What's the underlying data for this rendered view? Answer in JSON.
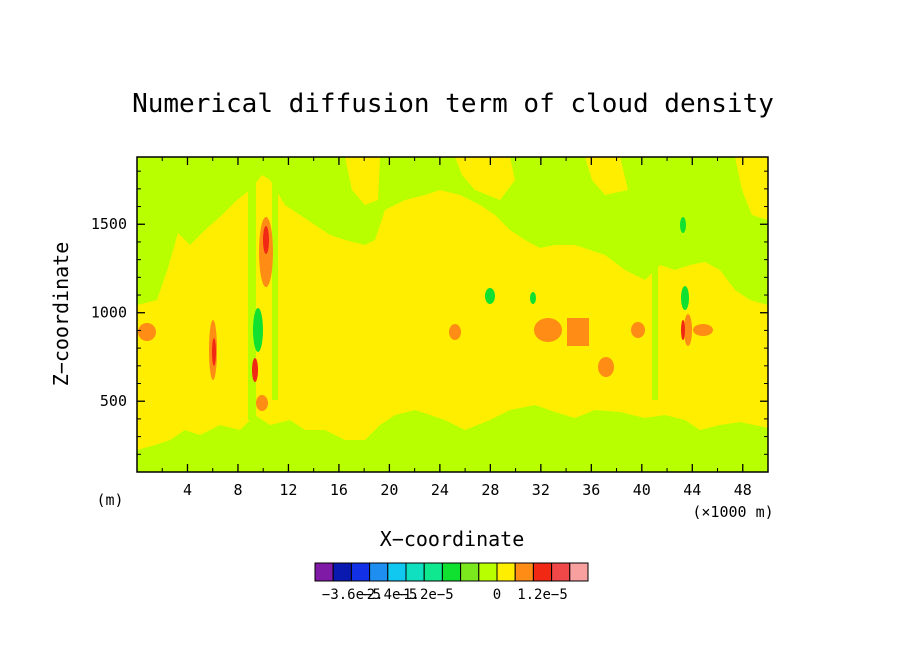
{
  "chart_data": {
    "type": "heatmap",
    "title": "Numerical diffusion term of cloud density",
    "xlabel": "X−coordinate",
    "ylabel": "Z−coordinate",
    "x_unit_label": "(×1000 m)",
    "y_unit_label": "(m)",
    "xlim": [
      0,
      50
    ],
    "ylim": [
      100,
      1880
    ],
    "x_ticks": [
      4,
      8,
      12,
      16,
      20,
      24,
      28,
      32,
      36,
      40,
      44,
      48
    ],
    "x_tick_labels": [
      "4",
      "8",
      "12",
      "16",
      "20",
      "24",
      "28",
      "32",
      "36",
      "40",
      "44",
      "48"
    ],
    "y_ticks": [
      500,
      1000,
      1500
    ],
    "y_tick_labels": [
      "500",
      "1000",
      "1500"
    ],
    "colorbar": {
      "colors": [
        "#7f1aa6",
        "#0a1ab0",
        "#1230e6",
        "#1e8ef0",
        "#10c8f0",
        "#10e0c0",
        "#10e890",
        "#10e030",
        "#7ae81c",
        "#b8ff00",
        "#ffee00",
        "#ff8c14",
        "#f02814",
        "#f04848",
        "#f8a0a0"
      ],
      "tick_labels": [
        "−3.6e−5",
        "−2.4e−5",
        "−1.2e−5",
        "0",
        "1.2e−5"
      ],
      "tick_values": [
        -3.6e-05,
        -2.4e-05,
        -1.2e-05,
        0,
        1.2e-05
      ]
    },
    "regions": [
      {
        "level": "lime",
        "desc": "weak negative, upper layer and surface layer"
      },
      {
        "level": "yellow",
        "desc": "near zero, mid layer"
      },
      {
        "level": "orange",
        "desc": "weak positive patches near z=900 m"
      },
      {
        "level": "red",
        "desc": "positive spots near x=6, 10, 43"
      },
      {
        "level": "green",
        "desc": "negative spots near x=10, 28, 43"
      }
    ]
  }
}
